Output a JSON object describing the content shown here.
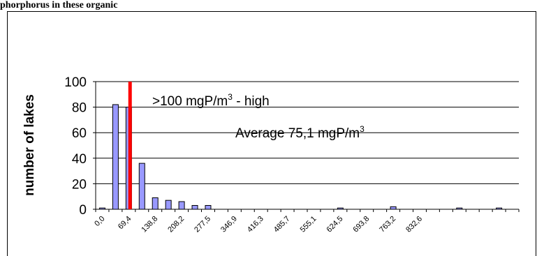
{
  "page": {
    "header_fragment": "phorphorus in these organic"
  },
  "colors": {
    "bar_fill": "#9999ff",
    "bar_stroke": "#000000",
    "threshold_line": "#ff0000",
    "gridline": "#000000"
  },
  "chart_data": {
    "type": "bar",
    "title": "",
    "xlabel": "",
    "ylabel": "number of lakes",
    "ylim": [
      0,
      100
    ],
    "yticks": [
      "0",
      "20",
      "40",
      "60",
      "80",
      "100"
    ],
    "gridlines": true,
    "x_tick_labels": [
      "0,0",
      "69,4",
      "138,8",
      "208,2",
      "277,5",
      "346,9",
      "416,3",
      "485,7",
      "555,1",
      "624,5",
      "693,8",
      "763,2",
      "832,6"
    ],
    "bin_count": 32,
    "values": [
      1,
      82,
      80,
      36,
      9,
      7,
      6,
      3,
      3,
      0,
      0,
      0,
      0,
      0,
      0,
      0,
      0,
      0,
      1,
      0,
      0,
      0,
      2,
      0,
      0,
      0,
      0,
      1,
      0,
      0,
      1,
      0
    ],
    "threshold": {
      "bin_position": 2.6,
      "label_main": ">100 mgP/m",
      "label_sup": "3",
      "label_suffix": " - high"
    },
    "annotations": [
      {
        "label_main": "Average 75,1 mgP/m",
        "label_sup": "3",
        "label_suffix": ""
      }
    ]
  }
}
